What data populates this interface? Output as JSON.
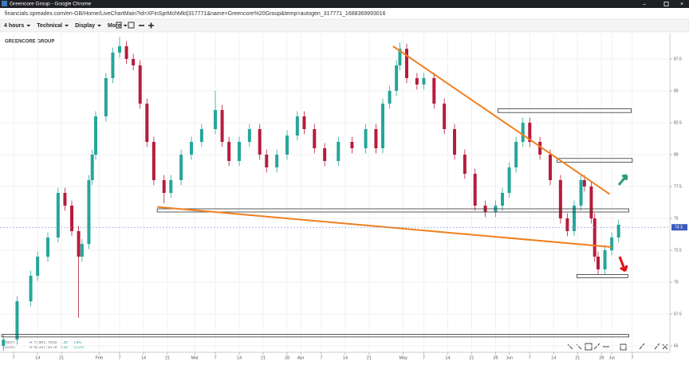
{
  "window": {
    "title": "Greencore Group - Google Chrome"
  },
  "browser": {
    "url": "financials.spreadex.com/en-GB/Home/LiveChartMain?id=XFinSprMchMkt|317771&name=Greencore%20Group&temp=autogen_317771_1688369993016"
  },
  "toolbar": {
    "items": [
      "4 hours",
      "Technical",
      "Display",
      "More"
    ]
  },
  "info": {
    "rows": [
      [
        "TODAY",
        "H: 74.80",
        "L: 73.84",
        "1.30",
        "1.8%"
      ],
      [
        "CHART",
        "H: 89.20",
        "L: 64.78",
        "8.48",
        "13.2%"
      ]
    ]
  },
  "chart_data": {
    "type": "candlestick",
    "title": "GREENCORE GROUP",
    "up_color": "#26a69a",
    "down_color": "#b71c3c",
    "line_color": "#f07f1e",
    "x": [
      4,
      8,
      12,
      14,
      17,
      20,
      22,
      24,
      26,
      27,
      29,
      30,
      31,
      34,
      36,
      38,
      40,
      42,
      44,
      46,
      48,
      51,
      53,
      56,
      59,
      62,
      66,
      68,
      70,
      73,
      76,
      79,
      81,
      84,
      87,
      90,
      92,
      95,
      98,
      102,
      106,
      110,
      113,
      115,
      117,
      119,
      120,
      122,
      125,
      127,
      130,
      133,
      136,
      139,
      142,
      145,
      148,
      150,
      152,
      154,
      156,
      158,
      161,
      164,
      167,
      169,
      171,
      173,
      174,
      176,
      177,
      178,
      180,
      182,
      184
    ],
    "open": [
      65.0,
      65.5,
      68.5,
      70.5,
      72,
      73.5,
      77,
      76,
      74,
      72,
      73,
      78,
      80,
      83,
      86,
      88,
      88.5,
      87.5,
      87,
      84,
      81,
      78,
      77,
      78,
      80,
      81,
      82,
      83.5,
      81,
      79.5,
      81,
      82,
      80,
      79,
      80,
      81.5,
      83,
      82,
      80.5,
      79.5,
      81,
      80.5,
      82,
      80.5,
      84,
      85,
      87,
      88.3,
      86,
      85.5,
      86,
      84,
      82,
      80,
      78.5,
      76,
      75.5,
      76,
      77,
      79,
      81,
      82.5,
      81,
      80,
      78,
      75,
      74,
      76,
      78,
      77.5,
      75,
      72,
      71,
      72.5,
      73.5
    ],
    "high": [
      65.9,
      68.9,
      70.9,
      72.4,
      73.9,
      77.4,
      77.4,
      76.4,
      74.4,
      73.4,
      78.4,
      80.4,
      83.4,
      86.4,
      88.4,
      89.2,
      88.9,
      87.9,
      87.4,
      84.4,
      81.4,
      78.4,
      78.4,
      80.4,
      81.4,
      82.4,
      85,
      83.9,
      81.4,
      81.4,
      82.4,
      82.4,
      80.4,
      80.4,
      81.9,
      83.4,
      83.4,
      82.4,
      80.9,
      81.4,
      81.4,
      82.4,
      82.4,
      84.4,
      85.4,
      87.4,
      88.8,
      88.7,
      86.4,
      86.4,
      86.4,
      84.4,
      82.4,
      80.4,
      78.9,
      76.4,
      76.4,
      77.4,
      79.4,
      81.4,
      82.9,
      82.9,
      81.4,
      80.4,
      78.4,
      75.4,
      76.4,
      78.4,
      78.4,
      77.9,
      75.4,
      72.4,
      72.9,
      73.9,
      74.9
    ],
    "low": [
      64.6,
      65.1,
      68.1,
      70.1,
      71.6,
      73.1,
      75.6,
      73.6,
      67.2,
      71.6,
      72.6,
      77.6,
      79.6,
      82.6,
      85.6,
      87.6,
      87.1,
      86.6,
      83.6,
      80.6,
      77.6,
      76.2,
      76.6,
      77.6,
      79.6,
      80.6,
      81.6,
      80.6,
      79.1,
      79.1,
      80.6,
      79.6,
      78.6,
      78.6,
      79.6,
      81.1,
      81.6,
      80.1,
      79.1,
      79.1,
      80.1,
      80.1,
      80.1,
      80.1,
      83.6,
      84.6,
      86.6,
      85.6,
      85.1,
      85.1,
      83.6,
      81.6,
      79.6,
      78.1,
      75.6,
      75.1,
      75.1,
      75.6,
      76.6,
      78.6,
      80.6,
      80.6,
      79.6,
      77.6,
      74.6,
      73.6,
      73.6,
      75.6,
      77.1,
      74.6,
      71.6,
      70.6,
      70.6,
      72.1,
      73.1
    ],
    "close": [
      65.5,
      68.5,
      70.5,
      72,
      73.5,
      77,
      76,
      74,
      72,
      73,
      78,
      80,
      83,
      86,
      88,
      88.5,
      87.5,
      87,
      84,
      81,
      78,
      77,
      78,
      80,
      81,
      82,
      83.5,
      81,
      79.5,
      81,
      82,
      80,
      79,
      80,
      81.5,
      83,
      82,
      80.5,
      79.5,
      81,
      80.5,
      82,
      80.5,
      84,
      85,
      87,
      88.3,
      86,
      85.5,
      86,
      84,
      82,
      80,
      78.5,
      76,
      75.5,
      76,
      77,
      79,
      81,
      82.5,
      81,
      80,
      78,
      75,
      74,
      76,
      78,
      77.5,
      75,
      72,
      71,
      72.5,
      73.5,
      74.5
    ],
    "last_price": 74.3,
    "trendlines": [
      {
        "x": [
          118,
          181.4
        ],
        "y": [
          88.5,
          76.9
        ]
      },
      {
        "x": [
          49,
          182
        ],
        "y": [
          75.9,
          72.75
        ]
      }
    ],
    "boxes": [
      {
        "x": [
          148.7,
          187.7
        ],
        "y": [
          83.6,
          83.3
        ]
      },
      {
        "x": [
          166,
          188
        ],
        "y": [
          79.7,
          79.4
        ]
      },
      {
        "x": [
          49,
          187
        ],
        "y": [
          75.75,
          75.5
        ]
      },
      {
        "x": [
          171.8,
          186.7
        ],
        "y": [
          70.6,
          70.35
        ]
      },
      {
        "x": [
          3.5,
          187
        ],
        "y": [
          65.9,
          65.7
        ]
      }
    ],
    "xlim": [
      3,
      199
    ],
    "ylim": [
      64.5,
      89.5
    ],
    "yticks": [
      65,
      67.5,
      70,
      72.5,
      75,
      77.5,
      80,
      82.5,
      85,
      87.5
    ],
    "xticks": [
      7,
      14,
      21,
      {
        "value": 32,
        "label": "Feb"
      },
      {
        "value": 38,
        "label": "7"
      },
      {
        "value": 45,
        "label": "14"
      },
      {
        "value": 52,
        "label": "21"
      },
      {
        "value": 60,
        "label": "Mar"
      },
      {
        "value": 66,
        "label": "7"
      },
      {
        "value": 73,
        "label": "14"
      },
      {
        "value": 80,
        "label": "21"
      },
      {
        "value": 87,
        "label": "28"
      },
      {
        "value": 91,
        "label": "Apr"
      },
      {
        "value": 97,
        "label": "7"
      },
      {
        "value": 104,
        "label": "14"
      },
      {
        "value": 111,
        "label": "21"
      },
      {
        "value": 121,
        "label": "May"
      },
      {
        "value": 127,
        "label": "7"
      },
      {
        "value": 134,
        "label": "14"
      },
      {
        "value": 141,
        "label": "21"
      },
      {
        "value": 148,
        "label": "28"
      },
      {
        "value": 152,
        "label": "Jun"
      },
      {
        "value": 158,
        "label": "7"
      },
      {
        "value": 165,
        "label": "14"
      },
      {
        "value": 172,
        "label": "21"
      },
      {
        "value": 179,
        "label": "28"
      },
      {
        "value": 182,
        "label": "Jul"
      },
      {
        "value": 188,
        "label": "7"
      }
    ],
    "grid": true
  }
}
